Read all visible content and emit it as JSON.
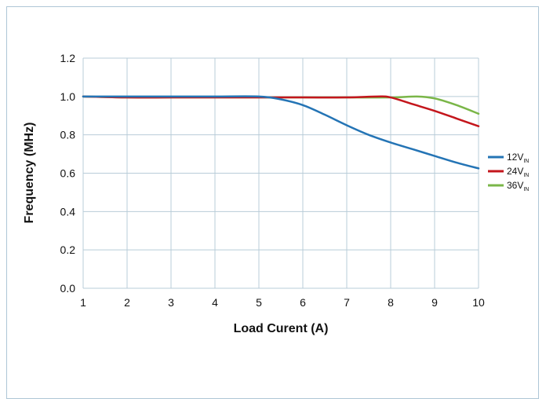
{
  "chart_data": {
    "type": "line",
    "title": "",
    "xlabel": "Load Curent (A)",
    "ylabel": "Frequency (MHz)",
    "xlim": [
      1,
      10
    ],
    "ylim": [
      0,
      1.2
    ],
    "grid": true,
    "legend_position": "right",
    "x_ticks": [
      "1",
      "2",
      "3",
      "4",
      "5",
      "6",
      "7",
      "8",
      "9",
      "10"
    ],
    "y_ticks": [
      "0.0",
      "0.2",
      "0.4",
      "0.6",
      "0.8",
      "1.0",
      "1.2"
    ],
    "series": [
      {
        "name": "12V",
        "name_subscript": "IN",
        "color": "#2474b5",
        "points": [
          [
            1,
            1.0
          ],
          [
            2,
            1.0
          ],
          [
            3,
            1.0
          ],
          [
            4,
            1.0
          ],
          [
            5,
            1.0
          ],
          [
            5.5,
            0.985
          ],
          [
            6,
            0.955
          ],
          [
            6.5,
            0.905
          ],
          [
            7,
            0.85
          ],
          [
            7.5,
            0.8
          ],
          [
            8,
            0.76
          ],
          [
            8.5,
            0.725
          ],
          [
            9,
            0.69
          ],
          [
            9.5,
            0.655
          ],
          [
            10,
            0.625
          ]
        ]
      },
      {
        "name": "24V",
        "name_subscript": "IN",
        "color": "#c4161c",
        "points": [
          [
            1,
            1.0
          ],
          [
            2,
            0.995
          ],
          [
            3,
            0.995
          ],
          [
            4,
            0.995
          ],
          [
            5,
            0.995
          ],
          [
            6,
            0.995
          ],
          [
            7,
            0.995
          ],
          [
            7.7,
            1.0
          ],
          [
            8,
            0.995
          ],
          [
            8.5,
            0.96
          ],
          [
            9,
            0.925
          ],
          [
            9.5,
            0.885
          ],
          [
            10,
            0.845
          ]
        ]
      },
      {
        "name": "36V",
        "name_subscript": "IN",
        "color": "#7ab648",
        "points": [
          [
            1,
            1.0
          ],
          [
            2,
            0.995
          ],
          [
            3,
            0.995
          ],
          [
            4,
            0.995
          ],
          [
            5,
            0.995
          ],
          [
            6,
            0.995
          ],
          [
            7,
            0.995
          ],
          [
            8,
            0.995
          ],
          [
            8.6,
            1.0
          ],
          [
            9,
            0.99
          ],
          [
            9.5,
            0.955
          ],
          [
            10,
            0.91
          ]
        ]
      }
    ]
  }
}
